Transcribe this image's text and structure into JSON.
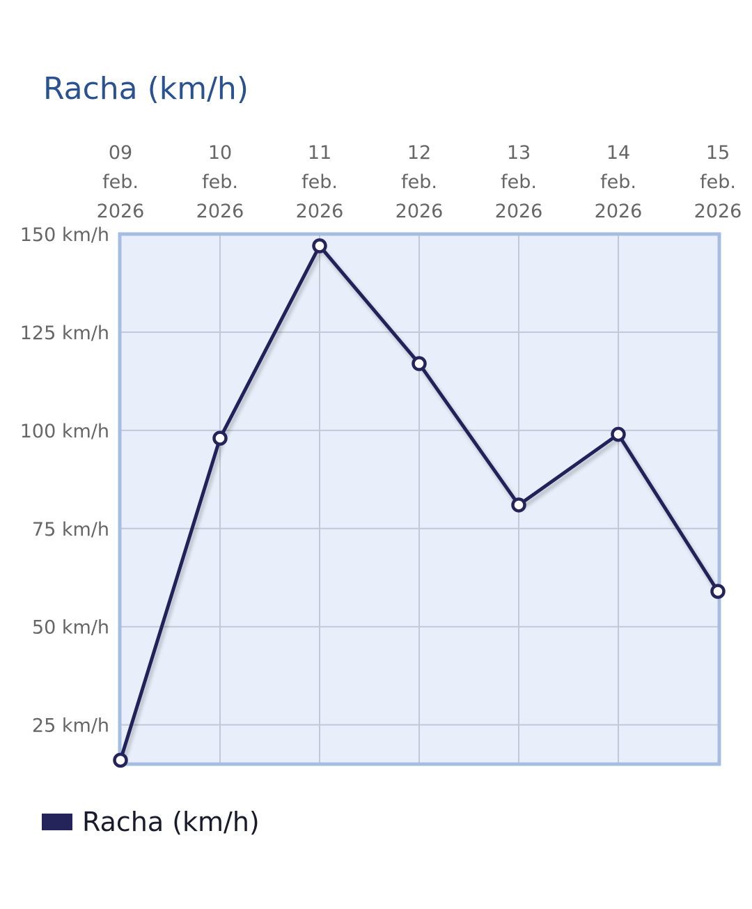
{
  "chart_data": {
    "type": "line",
    "title": "Racha (km/h)",
    "categories": [
      [
        "09",
        "feb.",
        "2026"
      ],
      [
        "10",
        "feb.",
        "2026"
      ],
      [
        "11",
        "feb.",
        "2026"
      ],
      [
        "12",
        "feb.",
        "2026"
      ],
      [
        "13",
        "feb.",
        "2026"
      ],
      [
        "14",
        "feb.",
        "2026"
      ],
      [
        "15",
        "feb.",
        "2026"
      ]
    ],
    "series": [
      {
        "name": "Racha (km/h)",
        "values": [
          16,
          98,
          147,
          117,
          81,
          99,
          59
        ],
        "color": "#24235a"
      }
    ],
    "y_ticks": [
      25,
      50,
      75,
      100,
      125,
      150
    ],
    "y_tick_labels": [
      "25 km/h",
      "50 km/h",
      "75 km/h",
      "100 km/h",
      "125 km/h",
      "150 km/h"
    ],
    "ylim": [
      15,
      150
    ],
    "xlabel": "",
    "ylabel": "",
    "grid": true,
    "legend_position": "bottom-left",
    "plot_background": "#e9effa",
    "plot_border_color": "#a6bde2",
    "grid_color": "#c3c8d6"
  }
}
